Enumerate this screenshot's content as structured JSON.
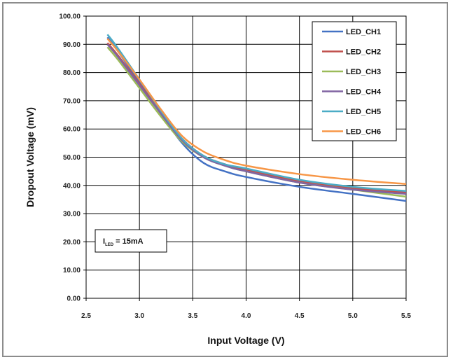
{
  "chart_data": {
    "type": "line",
    "title": "",
    "xlabel": "Input Voltage (V)",
    "ylabel": "Dropout Voltage (mV)",
    "xlim": [
      2.5,
      5.5
    ],
    "ylim": [
      0,
      100
    ],
    "x_ticks": [
      "2.5",
      "3.0",
      "3.5",
      "4.0",
      "4.5",
      "5.0",
      "5.5"
    ],
    "y_ticks": [
      "0.00",
      "10.00",
      "20.00",
      "30.00",
      "40.00",
      "50.00",
      "60.00",
      "70.00",
      "80.00",
      "90.00",
      "100.00"
    ],
    "grid": true,
    "legend_position": "top-right",
    "annotation": {
      "main": "I",
      "sub": "LED",
      "rest": " = 15mA"
    },
    "x": [
      2.7,
      2.8,
      3.0,
      3.2,
      3.4,
      3.6,
      3.8,
      4.0,
      4.5,
      5.0,
      5.5
    ],
    "series": [
      {
        "name": "LED_CH1",
        "color": "#4472c4",
        "values": [
          92.5,
          87.5,
          76.5,
          65.5,
          55.0,
          48.0,
          45.0,
          43.0,
          39.5,
          37.0,
          34.5
        ]
      },
      {
        "name": "LED_CH2",
        "color": "#c0504d",
        "values": [
          90.5,
          86.0,
          76.0,
          66.0,
          56.5,
          50.5,
          47.5,
          45.5,
          41.5,
          39.0,
          37.5
        ]
      },
      {
        "name": "LED_CH3",
        "color": "#9bbb59",
        "values": [
          89.0,
          84.5,
          74.5,
          64.5,
          55.5,
          50.0,
          47.0,
          45.0,
          41.0,
          38.5,
          36.0
        ]
      },
      {
        "name": "LED_CH4",
        "color": "#8064a2",
        "values": [
          90.0,
          85.5,
          75.5,
          65.5,
          56.0,
          50.0,
          47.0,
          45.0,
          41.0,
          38.5,
          37.0
        ]
      },
      {
        "name": "LED_CH5",
        "color": "#4bacc6",
        "values": [
          93.5,
          88.5,
          77.5,
          66.5,
          56.5,
          50.5,
          47.5,
          46.0,
          42.0,
          39.5,
          38.0
        ]
      },
      {
        "name": "LED_CH6",
        "color": "#f79646",
        "values": [
          92.0,
          87.5,
          77.5,
          67.0,
          57.5,
          52.0,
          49.0,
          47.0,
          44.0,
          42.0,
          40.5
        ]
      }
    ]
  }
}
